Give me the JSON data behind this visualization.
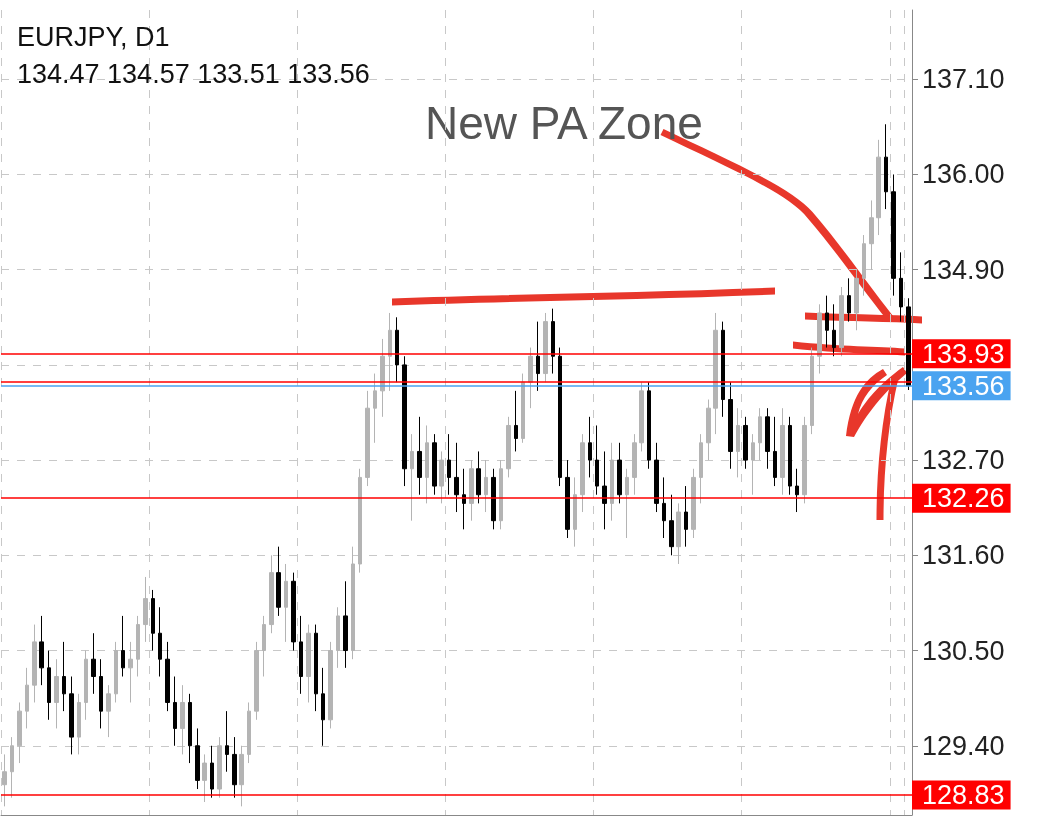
{
  "chart_data": {
    "type": "candlestick",
    "title": "EURJPY, D1",
    "subtitle": "134.47 134.57 133.51 133.56",
    "annotations": [
      "New PA Zone"
    ],
    "categories": [
      null,
      null,
      null,
      null,
      null,
      null,
      null,
      null,
      null,
      null,
      null,
      null,
      null,
      null,
      null,
      null,
      null,
      null,
      null,
      null,
      null,
      null,
      null,
      null,
      null,
      null,
      null,
      null,
      null,
      null,
      null,
      null,
      null,
      null,
      null,
      null,
      null,
      null,
      null,
      null,
      null,
      null,
      null,
      null,
      null,
      null,
      null,
      null,
      null,
      null,
      null,
      null,
      null,
      null,
      null,
      null,
      null,
      null,
      null,
      null,
      null,
      null,
      null,
      null,
      null,
      null,
      null,
      null,
      null,
      null,
      null,
      null,
      null,
      null,
      null,
      null,
      null,
      null,
      null,
      null,
      null,
      null,
      null,
      null,
      null,
      null,
      null,
      null,
      null,
      null,
      null,
      null,
      null,
      null,
      null,
      null,
      null,
      null,
      null,
      null,
      null,
      null,
      null,
      null,
      null,
      null,
      null,
      null,
      null,
      null,
      null,
      null,
      null,
      null,
      null,
      null,
      null,
      null,
      null,
      null,
      null,
      null,
      null
    ],
    "ohlc": [
      [
        128.95,
        129.3,
        128.7,
        129.1
      ],
      [
        129.1,
        129.5,
        128.8,
        129.4
      ],
      [
        129.4,
        129.9,
        129.2,
        129.8
      ],
      [
        129.8,
        130.3,
        129.6,
        130.1
      ],
      [
        130.1,
        130.8,
        129.9,
        130.6
      ],
      [
        130.6,
        130.9,
        130.1,
        130.3
      ],
      [
        130.3,
        130.5,
        129.7,
        129.9
      ],
      [
        129.9,
        130.4,
        129.6,
        130.2
      ],
      [
        130.2,
        130.6,
        129.8,
        130.0
      ],
      [
        130.0,
        130.2,
        129.3,
        129.5
      ],
      [
        129.5,
        130.0,
        129.3,
        129.9
      ],
      [
        129.9,
        130.5,
        129.7,
        130.4
      ],
      [
        130.4,
        130.7,
        130.0,
        130.2
      ],
      [
        130.2,
        130.4,
        129.6,
        129.8
      ],
      [
        129.8,
        130.1,
        129.5,
        130.0
      ],
      [
        130.0,
        130.6,
        129.9,
        130.5
      ],
      [
        130.5,
        130.9,
        130.2,
        130.3
      ],
      [
        130.3,
        130.6,
        129.9,
        130.4
      ],
      [
        130.4,
        130.9,
        130.2,
        130.8
      ],
      [
        130.8,
        131.35,
        130.6,
        131.1
      ],
      [
        131.1,
        131.2,
        130.5,
        130.7
      ],
      [
        130.7,
        131.0,
        130.2,
        130.4
      ],
      [
        130.4,
        130.6,
        129.8,
        129.9
      ],
      [
        129.9,
        130.2,
        129.4,
        129.6
      ],
      [
        129.6,
        130.1,
        129.3,
        129.9
      ],
      [
        129.9,
        130.0,
        129.2,
        129.4
      ],
      [
        129.4,
        129.6,
        128.9,
        129.0
      ],
      [
        129.0,
        129.3,
        128.75,
        129.2
      ],
      [
        129.2,
        129.4,
        128.8,
        128.9
      ],
      [
        128.9,
        129.5,
        128.8,
        129.4
      ],
      [
        129.4,
        129.8,
        129.1,
        129.3
      ],
      [
        129.3,
        129.5,
        128.8,
        128.95
      ],
      [
        128.95,
        129.4,
        128.7,
        129.3
      ],
      [
        129.3,
        129.9,
        129.2,
        129.8
      ],
      [
        129.8,
        130.6,
        129.7,
        130.5
      ],
      [
        130.5,
        130.9,
        130.2,
        130.8
      ],
      [
        130.8,
        131.6,
        130.7,
        131.4
      ],
      [
        131.4,
        131.7,
        130.9,
        131.0
      ],
      [
        131.0,
        131.5,
        130.6,
        131.3
      ],
      [
        131.3,
        131.4,
        130.5,
        130.6
      ],
      [
        130.6,
        130.9,
        130.0,
        130.2
      ],
      [
        130.2,
        130.8,
        129.9,
        130.7
      ],
      [
        130.7,
        130.8,
        129.8,
        130.0
      ],
      [
        130.0,
        130.3,
        129.4,
        129.7
      ],
      [
        129.7,
        130.6,
        129.6,
        130.5
      ],
      [
        130.5,
        131.0,
        130.3,
        130.9
      ],
      [
        130.9,
        131.3,
        130.3,
        130.5
      ],
      [
        130.5,
        131.7,
        130.4,
        131.5
      ],
      [
        131.5,
        132.6,
        131.4,
        132.5
      ],
      [
        132.5,
        133.5,
        132.4,
        133.3
      ],
      [
        133.3,
        133.7,
        132.9,
        133.5
      ],
      [
        133.5,
        134.1,
        133.2,
        133.9
      ],
      [
        133.9,
        134.4,
        133.5,
        134.2
      ],
      [
        134.2,
        134.35,
        133.6,
        133.8
      ],
      [
        133.8,
        133.9,
        132.4,
        132.6
      ],
      [
        132.6,
        133.0,
        132.0,
        132.8
      ],
      [
        132.8,
        133.2,
        132.3,
        132.5
      ],
      [
        132.5,
        133.1,
        132.2,
        132.9
      ],
      [
        132.9,
        133.0,
        132.3,
        132.4
      ],
      [
        132.4,
        132.8,
        132.2,
        132.7
      ],
      [
        132.7,
        133.0,
        132.3,
        132.5
      ],
      [
        132.5,
        132.9,
        132.1,
        132.3
      ],
      [
        132.3,
        132.6,
        131.9,
        132.2
      ],
      [
        132.2,
        132.7,
        132.0,
        132.6
      ],
      [
        132.6,
        132.8,
        132.2,
        132.3
      ],
      [
        132.3,
        132.7,
        132.1,
        132.5
      ],
      [
        132.5,
        132.6,
        131.9,
        132.0
      ],
      [
        132.0,
        132.7,
        131.9,
        132.6
      ],
      [
        132.6,
        133.2,
        132.5,
        133.1
      ],
      [
        133.1,
        133.5,
        132.8,
        132.95
      ],
      [
        132.95,
        133.7,
        132.9,
        133.6
      ],
      [
        133.6,
        134.0,
        133.3,
        133.9
      ],
      [
        133.9,
        134.3,
        133.5,
        133.7
      ],
      [
        133.7,
        134.4,
        133.6,
        134.3
      ],
      [
        134.3,
        134.45,
        133.7,
        133.9
      ],
      [
        133.9,
        134.0,
        132.4,
        132.5
      ],
      [
        132.5,
        132.7,
        131.8,
        131.9
      ],
      [
        131.9,
        132.5,
        131.7,
        132.3
      ],
      [
        132.3,
        133.0,
        132.1,
        132.9
      ],
      [
        132.9,
        133.2,
        132.5,
        132.7
      ],
      [
        132.7,
        133.1,
        132.3,
        132.4
      ],
      [
        132.4,
        132.8,
        131.9,
        132.2
      ],
      [
        132.2,
        132.9,
        132.0,
        132.7
      ],
      [
        132.7,
        132.9,
        132.2,
        132.3
      ],
      [
        132.3,
        132.6,
        131.8,
        132.5
      ],
      [
        132.5,
        133.0,
        132.3,
        132.9
      ],
      [
        132.9,
        133.6,
        132.8,
        133.5
      ],
      [
        133.5,
        133.6,
        132.6,
        132.7
      ],
      [
        132.7,
        132.9,
        132.1,
        132.2
      ],
      [
        132.2,
        132.5,
        131.8,
        132.0
      ],
      [
        132.0,
        132.3,
        131.6,
        131.7
      ],
      [
        131.7,
        132.2,
        131.5,
        132.1
      ],
      [
        132.1,
        132.4,
        131.7,
        131.9
      ],
      [
        131.9,
        132.6,
        131.8,
        132.5
      ],
      [
        132.5,
        133.0,
        132.2,
        132.9
      ],
      [
        132.9,
        133.4,
        132.7,
        133.3
      ],
      [
        133.3,
        134.4,
        133.0,
        134.2
      ],
      [
        134.2,
        134.3,
        133.2,
        133.4
      ],
      [
        133.4,
        133.6,
        132.6,
        132.8
      ],
      [
        132.8,
        133.3,
        132.5,
        133.1
      ],
      [
        133.1,
        133.2,
        132.6,
        132.7
      ],
      [
        132.7,
        133.0,
        132.3,
        132.9
      ],
      [
        132.9,
        133.3,
        132.7,
        133.2
      ],
      [
        133.2,
        133.3,
        132.6,
        132.8
      ],
      [
        132.8,
        133.2,
        132.4,
        132.5
      ],
      [
        132.5,
        133.3,
        132.3,
        133.1
      ],
      [
        133.1,
        133.2,
        132.3,
        132.4
      ],
      [
        132.4,
        132.6,
        132.1,
        132.3
      ],
      [
        132.3,
        133.2,
        132.2,
        133.1
      ],
      [
        133.1,
        134.0,
        133.0,
        133.9
      ],
      [
        133.9,
        134.5,
        133.7,
        134.4
      ],
      [
        134.4,
        134.6,
        134.0,
        134.2
      ],
      [
        134.2,
        134.5,
        133.9,
        134.0
      ],
      [
        134.0,
        134.7,
        133.9,
        134.6
      ],
      [
        134.6,
        134.8,
        134.3,
        134.4
      ],
      [
        134.4,
        134.9,
        134.2,
        134.8
      ],
      [
        134.8,
        135.3,
        134.6,
        135.2
      ],
      [
        135.2,
        135.7,
        134.9,
        135.5
      ],
      [
        135.5,
        136.4,
        135.3,
        136.2
      ],
      [
        136.2,
        136.58,
        135.6,
        135.8
      ],
      [
        135.8,
        136.0,
        134.6,
        134.8
      ],
      [
        134.8,
        135.1,
        134.3,
        134.47
      ],
      [
        134.47,
        134.57,
        133.51,
        133.56
      ]
    ],
    "colors": [
      "#b4b4b4",
      "#b4b4b4",
      "#b4b4b4",
      "#b4b4b4",
      "#b4b4b4",
      "#000000",
      "#000000",
      "#b4b4b4",
      "#000000",
      "#000000",
      "#b4b4b4",
      "#b4b4b4",
      "#000000",
      "#000000",
      "#b4b4b4",
      "#b4b4b4",
      "#000000",
      "#b4b4b4",
      "#b4b4b4",
      "#b4b4b4",
      "#000000",
      "#000000",
      "#000000",
      "#000000",
      "#b4b4b4",
      "#000000",
      "#000000",
      "#b4b4b4",
      "#000000",
      "#b4b4b4",
      "#000000",
      "#000000",
      "#b4b4b4",
      "#b4b4b4",
      "#b4b4b4",
      "#b4b4b4",
      "#b4b4b4",
      "#000000",
      "#b4b4b4",
      "#000000",
      "#000000",
      "#b4b4b4",
      "#000000",
      "#000000",
      "#b4b4b4",
      "#b4b4b4",
      "#000000",
      "#b4b4b4",
      "#b4b4b4",
      "#b4b4b4",
      "#b4b4b4",
      "#b4b4b4",
      "#b4b4b4",
      "#000000",
      "#000000",
      "#b4b4b4",
      "#000000",
      "#b4b4b4",
      "#000000",
      "#b4b4b4",
      "#000000",
      "#000000",
      "#000000",
      "#b4b4b4",
      "#000000",
      "#b4b4b4",
      "#000000",
      "#b4b4b4",
      "#b4b4b4",
      "#000000",
      "#b4b4b4",
      "#b4b4b4",
      "#000000",
      "#b4b4b4",
      "#000000",
      "#000000",
      "#000000",
      "#b4b4b4",
      "#b4b4b4",
      "#000000",
      "#000000",
      "#000000",
      "#b4b4b4",
      "#000000",
      "#b4b4b4",
      "#b4b4b4",
      "#b4b4b4",
      "#000000",
      "#000000",
      "#000000",
      "#000000",
      "#b4b4b4",
      "#000000",
      "#b4b4b4",
      "#b4b4b4",
      "#b4b4b4",
      "#b4b4b4",
      "#000000",
      "#000000",
      "#b4b4b4",
      "#000000",
      "#b4b4b4",
      "#b4b4b4",
      "#000000",
      "#000000",
      "#b4b4b4",
      "#000000",
      "#000000",
      "#b4b4b4",
      "#b4b4b4",
      "#b4b4b4",
      "#000000",
      "#000000",
      "#b4b4b4",
      "#000000",
      "#b4b4b4",
      "#b4b4b4",
      "#b4b4b4",
      "#b4b4b4",
      "#000000",
      "#000000",
      "#000000",
      "#000000"
    ],
    "ylim": [
      128.6,
      137.9
    ],
    "yticks": [
      {
        "value": 129.4,
        "label": "129.40"
      },
      {
        "value": 130.5,
        "label": "130.50"
      },
      {
        "value": 131.6,
        "label": "131.60"
      },
      {
        "value": 132.7,
        "label": "132.70"
      },
      {
        "value": 133.8,
        "label": null
      },
      {
        "value": 134.9,
        "label": "134.90"
      },
      {
        "value": 136.0,
        "label": "136.00"
      },
      {
        "value": 137.1,
        "label": "137.10"
      }
    ],
    "ref_lines": [
      {
        "axis": "y",
        "value": 133.93,
        "label": "133.93",
        "color": "#ff0000"
      },
      {
        "axis": "y",
        "value": 133.6,
        "color": "#ff0000"
      },
      {
        "axis": "y",
        "value": 133.56,
        "label": "133.56",
        "color": "#4aa3f0"
      },
      {
        "axis": "y",
        "value": 132.26,
        "label": "132.26",
        "color": "#ff0000"
      },
      {
        "axis": "y",
        "value": 128.83,
        "label": "128.83",
        "color": "#ff0000"
      }
    ],
    "grid": true,
    "tick_labels": "y"
  }
}
